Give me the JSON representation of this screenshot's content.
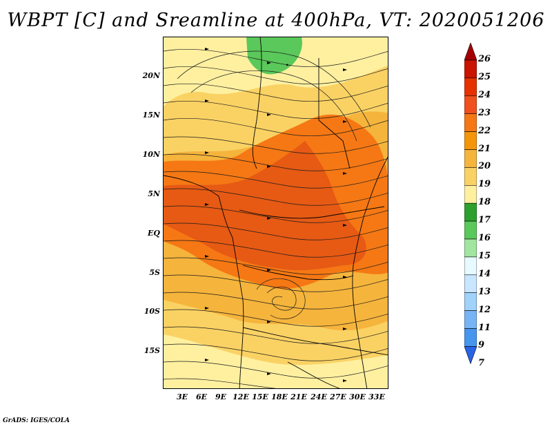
{
  "title": "WBPT [C] and Sreamline at 400hPa, VT: 2020051206",
  "credit": "GrADS: IGES/COLA",
  "map": {
    "lat_labels": [
      "20N",
      "15N",
      "10N",
      "5N",
      "EQ",
      "5S",
      "10S",
      "15S"
    ],
    "lon_labels": [
      "3E",
      "6E",
      "9E",
      "12E",
      "15E",
      "18E",
      "21E",
      "24E",
      "27E",
      "30E",
      "33E"
    ],
    "field": "wet-bulb potential temperature",
    "overlay": "streamlines"
  },
  "colorbar": {
    "levels": [
      "26",
      "25",
      "24",
      "23",
      "22",
      "21",
      "20",
      "19",
      "18",
      "17",
      "16",
      "15",
      "14",
      "13",
      "12",
      "11",
      "9",
      "7"
    ],
    "colors": [
      "#a50000",
      "#c81400",
      "#e63200",
      "#f0501e",
      "#f57814",
      "#f5960a",
      "#f5b43c",
      "#fad264",
      "#fff0a0",
      "#2da02d",
      "#5ac85a",
      "#a0e6a0",
      "#e6faff",
      "#c8e6ff",
      "#a0d2fa",
      "#78b4f5",
      "#4696ef",
      "#2864e6"
    ]
  }
}
